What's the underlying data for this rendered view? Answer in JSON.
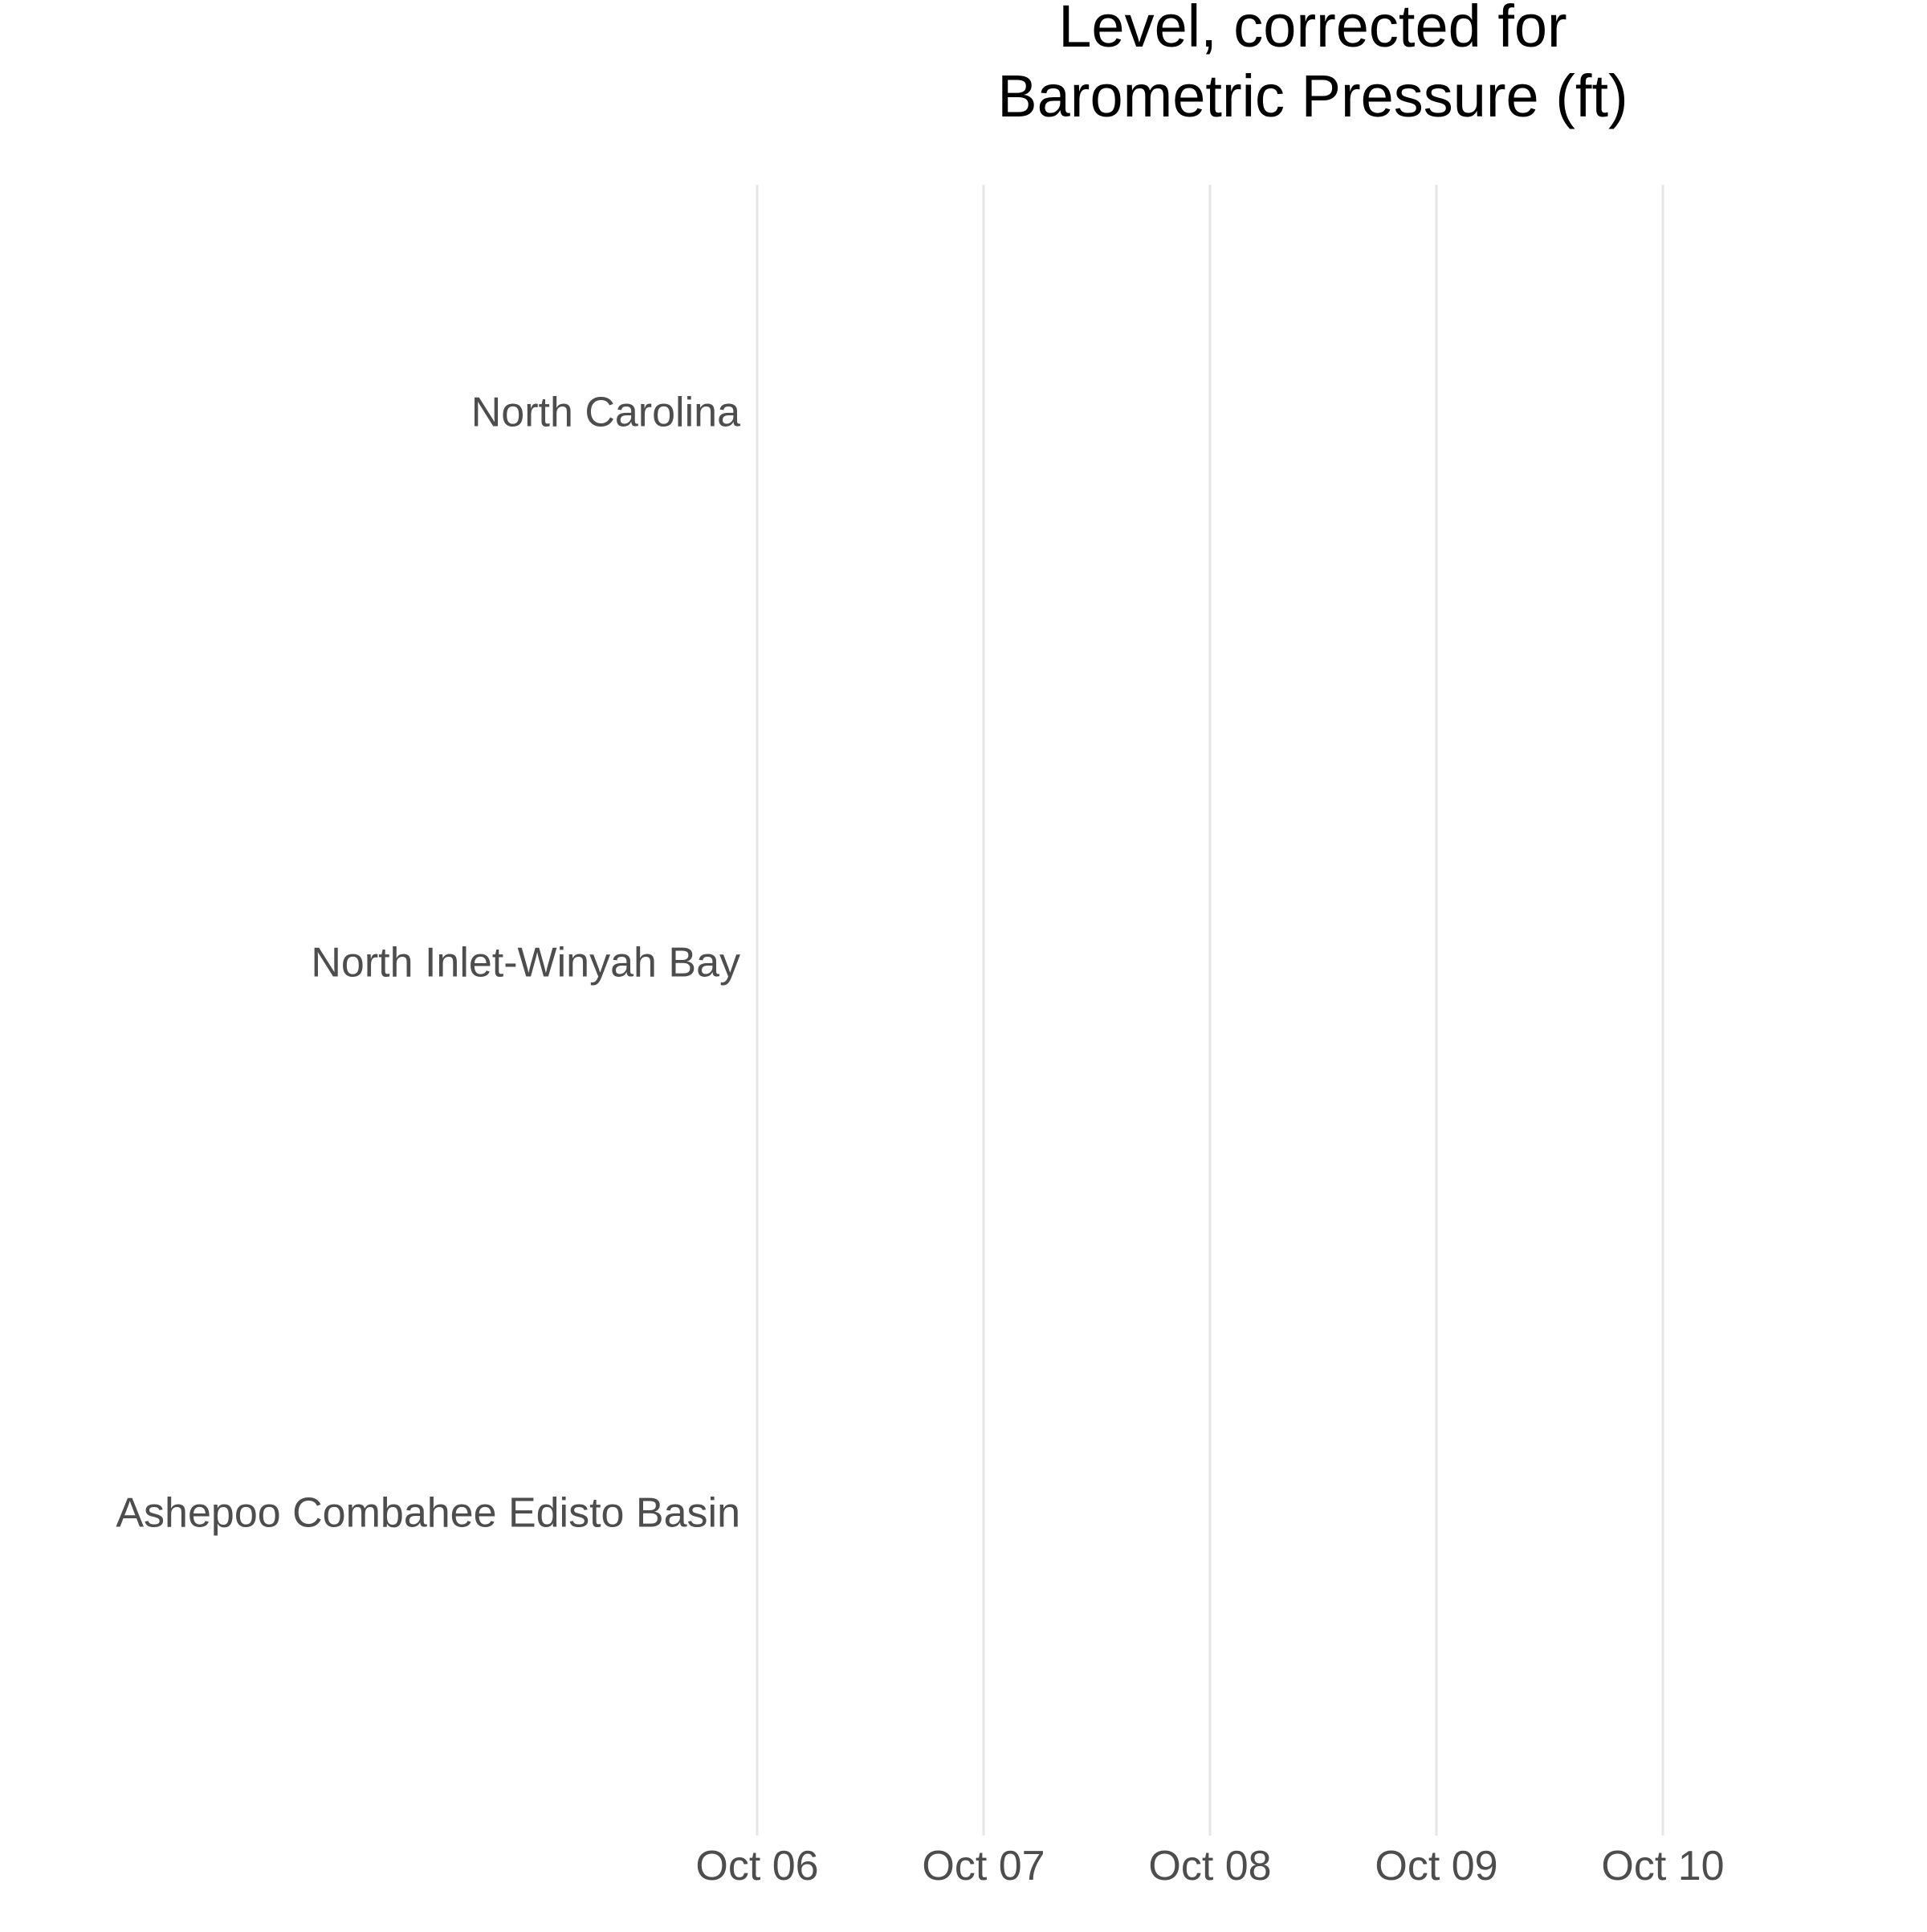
{
  "chart_data": {
    "type": "line",
    "title_lines": [
      "Level, corrected for",
      "Barometric Pressure (ft)"
    ],
    "xlabel": "",
    "ylabel": "",
    "x_axis": {
      "kind": "date",
      "ticks": [
        "2000-10-06",
        "2000-10-07",
        "2000-10-08",
        "2000-10-09",
        "2000-10-10"
      ],
      "tick_labels": [
        "Oct 06",
        "Oct 07",
        "Oct 08",
        "Oct 09",
        "Oct 10"
      ],
      "range": [
        "2000-10-06",
        "2000-10-10"
      ]
    },
    "y_axis": {
      "kind": "categorical",
      "categories": [
        "North Carolina",
        "North Inlet-Winyah Bay",
        "Ashepoo Combahee Edisto Basin"
      ]
    },
    "series": [],
    "grid": "vertical-major",
    "legend": "none",
    "colors": {
      "gridline": "#e6e6e6",
      "tick_text": "#4d4d4d",
      "title_text": "#000000",
      "background": "#ffffff"
    }
  }
}
